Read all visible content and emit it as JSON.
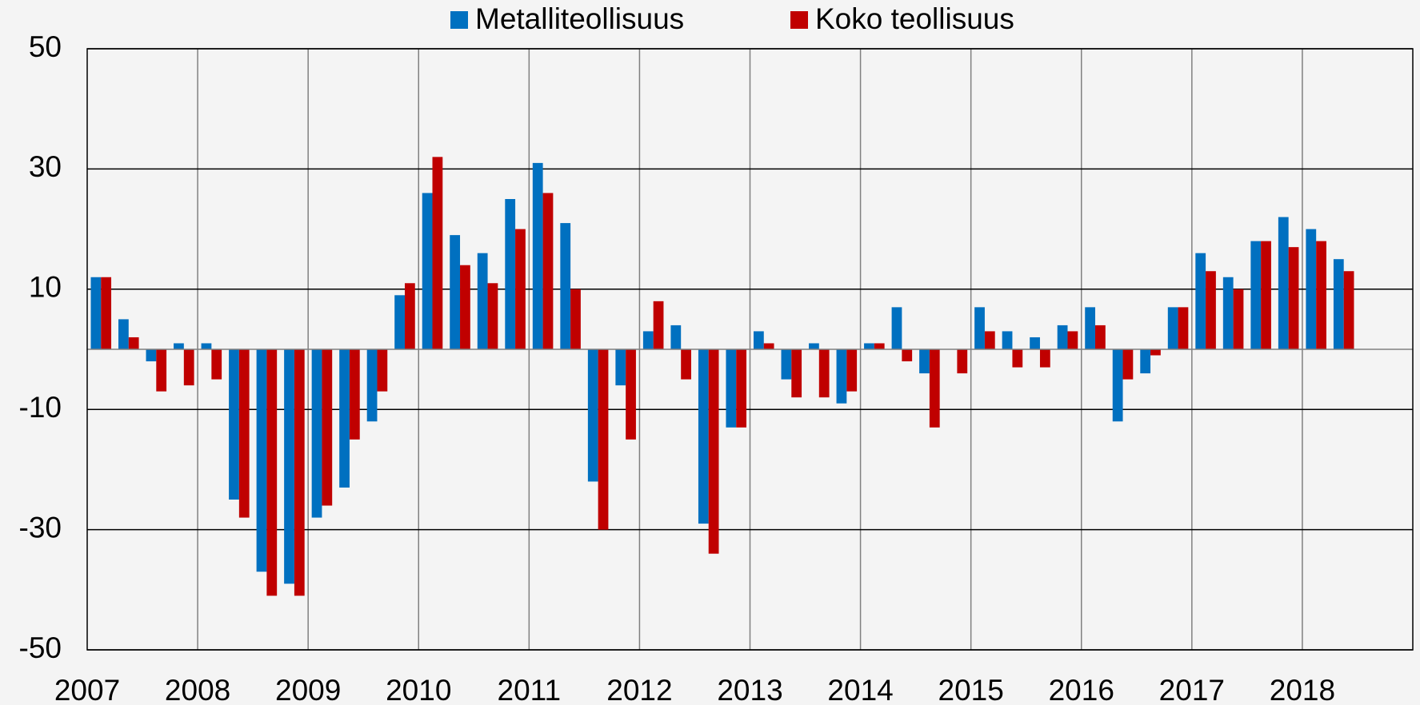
{
  "chart_data": {
    "type": "bar",
    "categories": [
      "2007",
      null,
      null,
      null,
      "2008",
      null,
      null,
      null,
      "2009",
      null,
      null,
      null,
      "2010",
      null,
      null,
      null,
      "2011",
      null,
      null,
      null,
      "2012",
      null,
      null,
      null,
      "2013",
      null,
      null,
      null,
      "2014",
      null,
      null,
      null,
      "2015",
      null,
      null,
      null,
      "2016",
      null,
      null,
      null,
      "2017",
      null,
      null,
      null,
      "2018",
      null,
      null,
      null
    ],
    "series": [
      {
        "name": "Metalliteollisuus",
        "color": "#0070c0",
        "values": [
          12,
          5,
          -2,
          1,
          1,
          -25,
          -37,
          -39,
          -28,
          -23,
          -12,
          9,
          26,
          19,
          16,
          25,
          31,
          21,
          -22,
          -6,
          3,
          4,
          -29,
          -13,
          3,
          -5,
          1,
          -9,
          1,
          7,
          -4,
          0,
          7,
          3,
          2,
          4,
          7,
          -12,
          -4,
          7,
          16,
          12,
          18,
          22,
          20,
          15,
          null,
          null
        ]
      },
      {
        "name": "Koko teollisuus",
        "color": "#c00000",
        "values": [
          12,
          2,
          -7,
          -6,
          -5,
          -28,
          -41,
          -41,
          -26,
          -15,
          -7,
          11,
          32,
          14,
          11,
          20,
          26,
          10,
          -30,
          -15,
          8,
          -5,
          -34,
          -13,
          1,
          -8,
          -8,
          -7,
          1,
          -2,
          -13,
          -4,
          3,
          -3,
          -3,
          3,
          4,
          -5,
          -1,
          7,
          13,
          10,
          18,
          17,
          18,
          13,
          null,
          null
        ]
      }
    ],
    "ylim": [
      -50,
      50
    ],
    "yticks": [
      -50,
      -30,
      -10,
      10,
      30,
      50
    ],
    "grid": true,
    "legend": "top"
  }
}
